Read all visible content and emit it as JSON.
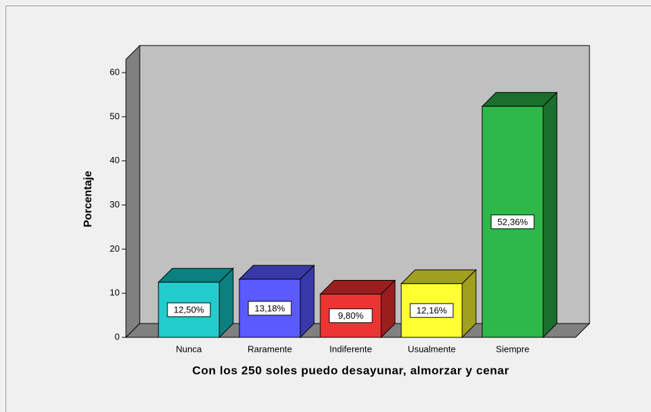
{
  "chart_data": {
    "type": "bar3d",
    "x_label": "Con los 250 soles puedo desayunar, almorzar y cenar",
    "y_label": "Porcentaje",
    "categories": [
      "Nunca",
      "Raramente",
      "Indiferente",
      "Usualmente",
      "Siempre"
    ],
    "values": [
      12.5,
      13.18,
      9.8,
      12.16,
      52.36
    ],
    "value_labels": [
      "12,50%",
      "13,18%",
      "9,80%",
      "12,16%",
      "52,36%"
    ],
    "colors": [
      "#22cccc",
      "#5a5aff",
      "#ee3333",
      "#ffff33",
      "#2eb84a"
    ],
    "top_colors": [
      "#0a8080",
      "#3838a8",
      "#991f1f",
      "#a0a01e",
      "#1c6e2c"
    ],
    "ylim": [
      0,
      63
    ],
    "yticks": [
      0,
      10,
      20,
      30,
      40,
      50,
      60
    ],
    "grid": false
  }
}
